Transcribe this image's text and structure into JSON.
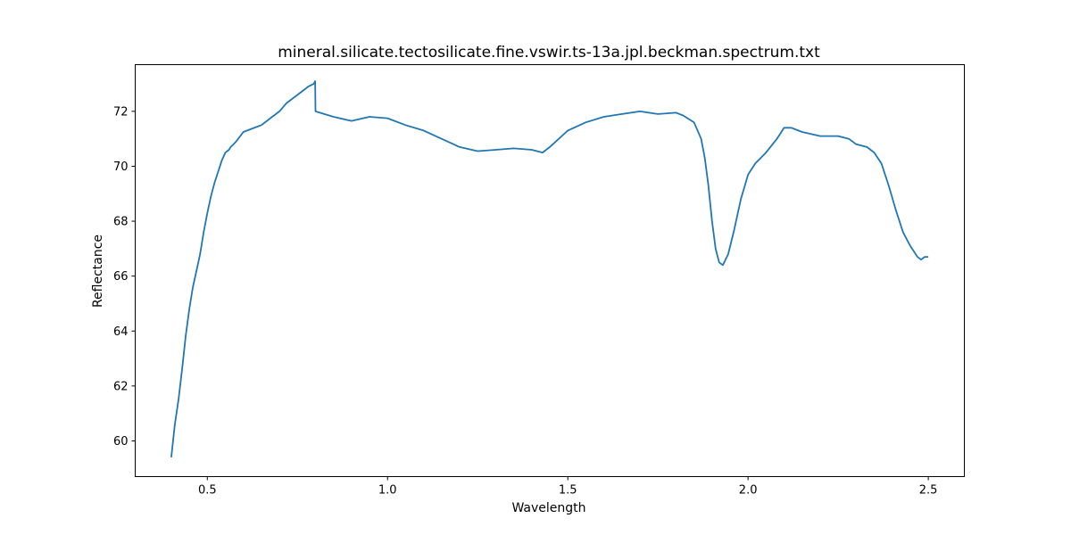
{
  "chart_data": {
    "type": "line",
    "title": "mineral.silicate.tectosilicate.fine.vswir.ts-13a.jpl.beckman.spectrum.txt",
    "xlabel": "Wavelength",
    "ylabel": "Reflectance",
    "xlim": [
      0.3,
      2.6
    ],
    "ylim": [
      58.7,
      73.7
    ],
    "xticks": [
      0.5,
      1.0,
      1.5,
      2.0,
      2.5
    ],
    "xtick_labels": [
      "0.5",
      "1.0",
      "1.5",
      "2.0",
      "2.5"
    ],
    "yticks": [
      60,
      62,
      64,
      66,
      68,
      70,
      72
    ],
    "ytick_labels": [
      "60",
      "62",
      "64",
      "66",
      "68",
      "70",
      "72"
    ],
    "grid": false,
    "series": [
      {
        "color": "#1f77b4",
        "x": [
          0.4,
          0.41,
          0.42,
          0.43,
          0.44,
          0.45,
          0.46,
          0.47,
          0.48,
          0.49,
          0.5,
          0.51,
          0.52,
          0.53,
          0.54,
          0.55,
          0.56,
          0.565,
          0.58,
          0.6,
          0.62,
          0.65,
          0.68,
          0.7,
          0.72,
          0.75,
          0.78,
          0.795,
          0.799,
          0.8,
          0.85,
          0.9,
          0.95,
          1.0,
          1.05,
          1.1,
          1.15,
          1.2,
          1.25,
          1.3,
          1.35,
          1.4,
          1.43,
          1.45,
          1.5,
          1.55,
          1.6,
          1.65,
          1.7,
          1.75,
          1.8,
          1.82,
          1.85,
          1.87,
          1.88,
          1.89,
          1.9,
          1.91,
          1.92,
          1.93,
          1.945,
          1.96,
          1.98,
          2.0,
          2.02,
          2.05,
          2.08,
          2.1,
          2.12,
          2.15,
          2.2,
          2.25,
          2.28,
          2.3,
          2.33,
          2.35,
          2.37,
          2.39,
          2.41,
          2.43,
          2.45,
          2.47,
          2.48,
          2.49,
          2.5
        ],
        "y": [
          59.4,
          60.6,
          61.5,
          62.6,
          63.8,
          64.8,
          65.6,
          66.2,
          66.8,
          67.6,
          68.3,
          68.9,
          69.4,
          69.8,
          70.2,
          70.5,
          70.6,
          70.7,
          70.9,
          71.25,
          71.35,
          71.5,
          71.8,
          72.0,
          72.3,
          72.6,
          72.9,
          73.0,
          73.1,
          72.0,
          71.8,
          71.65,
          71.8,
          71.75,
          71.5,
          71.3,
          71.0,
          70.7,
          70.55,
          70.6,
          70.65,
          70.6,
          70.5,
          70.7,
          71.3,
          71.6,
          71.8,
          71.9,
          72.0,
          71.9,
          71.95,
          71.85,
          71.6,
          71.0,
          70.3,
          69.3,
          68.0,
          67.0,
          66.5,
          66.4,
          66.8,
          67.6,
          68.8,
          69.7,
          70.1,
          70.5,
          71.0,
          71.4,
          71.4,
          71.25,
          71.1,
          71.1,
          71.0,
          70.8,
          70.7,
          70.5,
          70.1,
          69.3,
          68.4,
          67.6,
          67.1,
          66.7,
          66.6,
          66.7,
          66.7
        ]
      }
    ]
  }
}
